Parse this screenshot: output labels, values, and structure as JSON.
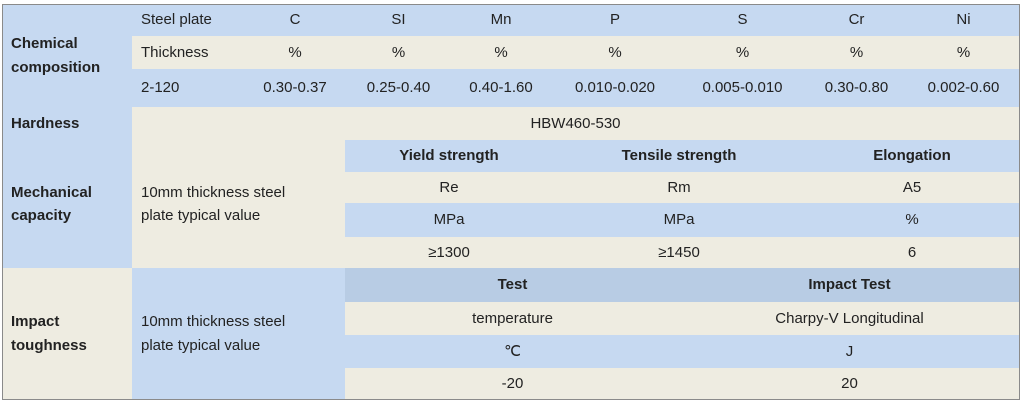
{
  "chemical": {
    "label": "Chemical composition",
    "rows": [
      [
        "Steel plate",
        "C",
        "SI",
        "Mn",
        "P",
        "S",
        "Cr",
        "Ni"
      ],
      [
        "Thickness",
        "%",
        "%",
        "%",
        "%",
        "%",
        "%",
        "%"
      ],
      [
        "2-120",
        "0.30-0.37",
        "0.25-0.40",
        "0.40-1.60",
        "0.010-0.020",
        "0.005-0.010",
        "0.30-0.80",
        "0.002-0.60"
      ]
    ]
  },
  "hardness": {
    "label": "Hardness",
    "value": "HBW460-530"
  },
  "mechanical": {
    "label": "Mechanical capacity",
    "note": "10mm thickness steel plate typical value",
    "rows": [
      [
        "Yield strength",
        "Tensile strength",
        "Elongation"
      ],
      [
        "Re",
        "Rm",
        "A5"
      ],
      [
        "MPa",
        "MPa",
        "%"
      ],
      [
        "≥1300",
        "≥1450",
        "6"
      ]
    ]
  },
  "impact": {
    "label": "Impact toughness",
    "note": "10mm thickness steel plate typical value",
    "rows": [
      [
        "Test",
        "Impact Test"
      ],
      [
        "temperature",
        "Charpy-V Longitudinal"
      ],
      [
        "℃",
        "J"
      ],
      [
        "-20",
        "20"
      ]
    ]
  }
}
